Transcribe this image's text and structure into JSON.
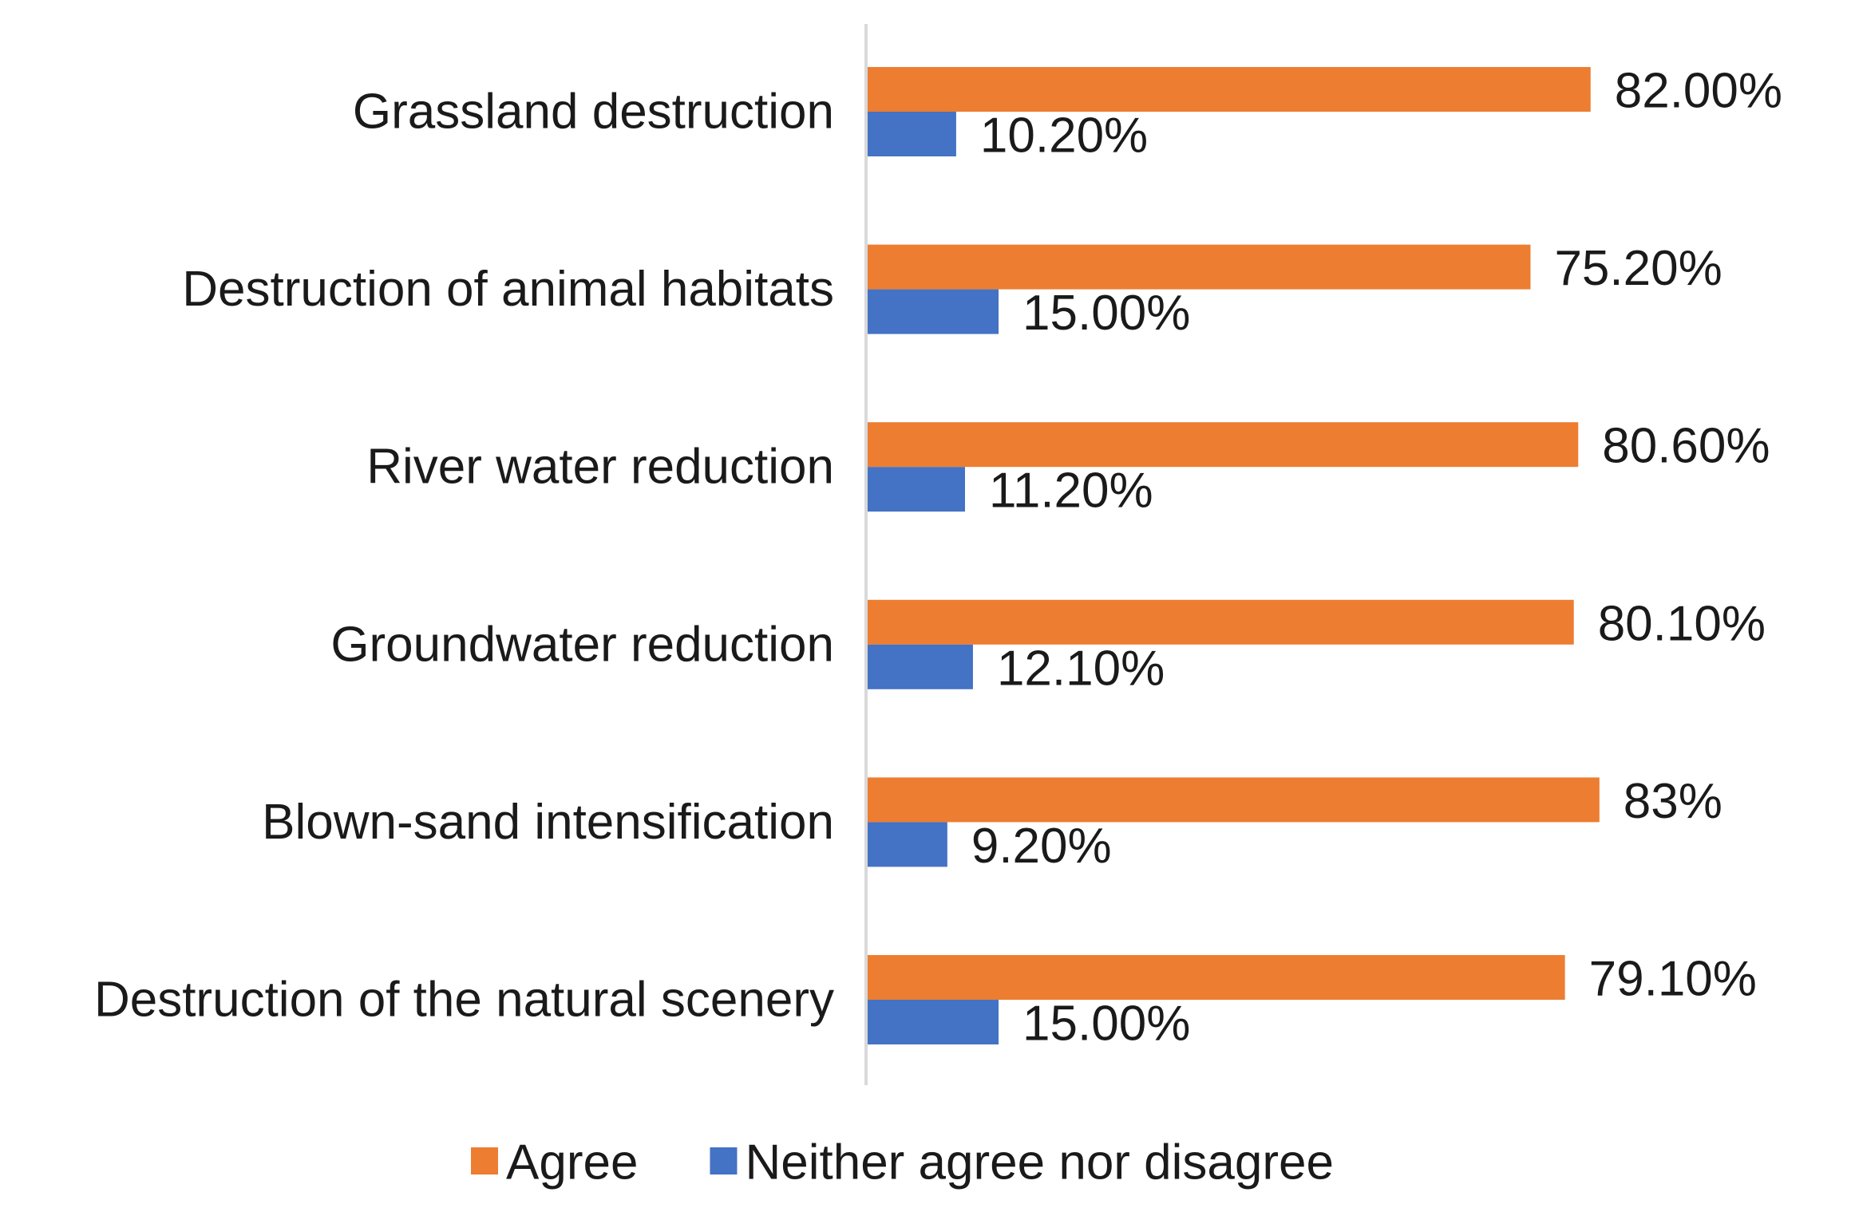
{
  "chart_data": {
    "type": "bar",
    "orientation": "horizontal",
    "title": "",
    "xlabel": "",
    "ylabel": "",
    "xlim": [
      0,
      100
    ],
    "grid": false,
    "legend_position": "bottom",
    "categories": [
      "Grassland destruction",
      "Destruction of animal habitats",
      "River water reduction",
      "Groundwater reduction",
      "Blown-sand intensification",
      "Destruction of the natural scenery"
    ],
    "series": [
      {
        "name": "Agree",
        "color": "#ED7D31",
        "values": [
          82.0,
          75.2,
          80.6,
          80.1,
          83.0,
          79.1
        ],
        "labels": [
          "82.00%",
          "75.20%",
          "80.60%",
          "80.10%",
          "83%",
          "79.10%"
        ]
      },
      {
        "name": "Neither agree nor disagree",
        "color": "#4472C4",
        "values": [
          10.2,
          15.0,
          11.2,
          12.1,
          9.2,
          15.0
        ],
        "labels": [
          "10.20%",
          "15.00%",
          "11.20%",
          "12.10%",
          "9.20%",
          "15.00%"
        ]
      }
    ],
    "axis_color": "#D9D9D9"
  }
}
